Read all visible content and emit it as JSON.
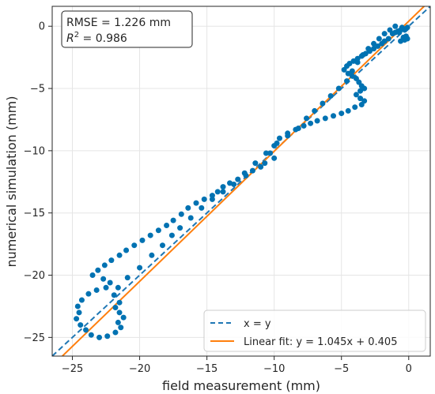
{
  "chart_data": {
    "type": "scatter",
    "xlabel": "field measurement (mm)",
    "ylabel": "numerical simulation (mm)",
    "xlim": [
      -26.5,
      1.6
    ],
    "ylim": [
      -26.5,
      1.6
    ],
    "xticks": [
      -25,
      -20,
      -15,
      -10,
      -5,
      0
    ],
    "yticks": [
      -25,
      -20,
      -15,
      -10,
      -5,
      0
    ],
    "grid": true,
    "annotation": {
      "line1": "RMSE = 1.226 mm",
      "line2_prefix": "R",
      "line2_sup": "2",
      "line2_suffix": " = 0.986"
    },
    "legend": {
      "placement": "lower-right",
      "entries": [
        {
          "label": "x = y",
          "style": "dashed",
          "color": "#1f77b4"
        },
        {
          "label": "Linear fit: y = 1.045x + 0.405",
          "style": "solid",
          "color": "#ff7f0e"
        }
      ]
    },
    "lines": [
      {
        "type": "identity",
        "color": "#1f77b4",
        "dashed": true
      },
      {
        "type": "linear",
        "slope": 1.045,
        "intercept": 0.405,
        "color": "#ff7f0e",
        "dashed": false
      }
    ],
    "points_color": "#0072b2",
    "points": [
      [
        -0.5,
        -0.1
      ],
      [
        -0.4,
        -0.2
      ],
      [
        -0.3,
        -0.3
      ],
      [
        -0.2,
        -0.2
      ],
      [
        -0.1,
        -0.1
      ],
      [
        -0.6,
        -0.3
      ],
      [
        -0.8,
        -0.4
      ],
      [
        -1.0,
        -0.5
      ],
      [
        -1.2,
        -0.6
      ],
      [
        -0.2,
        -0.8
      ],
      [
        -0.4,
        -0.9
      ],
      [
        -0.1,
        -1.0
      ],
      [
        -0.3,
        -1.1
      ],
      [
        -0.6,
        -1.2
      ],
      [
        -1.5,
        -1.0
      ],
      [
        -1.8,
        -1.2
      ],
      [
        -2.0,
        -1.4
      ],
      [
        -2.3,
        -1.6
      ],
      [
        -2.6,
        -1.8
      ],
      [
        -2.9,
        -2.0
      ],
      [
        -3.2,
        -2.2
      ],
      [
        -3.5,
        -2.4
      ],
      [
        -3.8,
        -2.6
      ],
      [
        -4.1,
        -2.8
      ],
      [
        -4.4,
        -3.0
      ],
      [
        -4.6,
        -3.2
      ],
      [
        -4.8,
        -3.5
      ],
      [
        -4.5,
        -3.8
      ],
      [
        -4.2,
        -4.0
      ],
      [
        -3.9,
        -4.2
      ],
      [
        -3.7,
        -4.5
      ],
      [
        -3.5,
        -4.8
      ],
      [
        -3.3,
        -5.0
      ],
      [
        -3.6,
        -5.2
      ],
      [
        -3.9,
        -5.5
      ],
      [
        -3.6,
        -5.8
      ],
      [
        -3.3,
        -6.0
      ],
      [
        -3.5,
        -6.3
      ],
      [
        -4.0,
        -6.5
      ],
      [
        -4.5,
        -6.8
      ],
      [
        -5.0,
        -7.0
      ],
      [
        -5.6,
        -7.2
      ],
      [
        -6.2,
        -7.4
      ],
      [
        -6.8,
        -7.6
      ],
      [
        -7.3,
        -7.8
      ],
      [
        -7.8,
        -8.0
      ],
      [
        -8.4,
        -8.3
      ],
      [
        -9.0,
        -8.6
      ],
      [
        -9.6,
        -9.0
      ],
      [
        -10.0,
        -9.6
      ],
      [
        -10.3,
        -10.2
      ],
      [
        -10.0,
        -10.6
      ],
      [
        -10.7,
        -11.0
      ],
      [
        -11.0,
        -11.3
      ],
      [
        -11.6,
        -11.6
      ],
      [
        -12.1,
        -12.0
      ],
      [
        -12.7,
        -12.3
      ],
      [
        -13.3,
        -12.6
      ],
      [
        -13.8,
        -12.9
      ],
      [
        -14.2,
        -13.3
      ],
      [
        -14.6,
        -13.6
      ],
      [
        -15.2,
        -13.9
      ],
      [
        -15.8,
        -14.2
      ],
      [
        -16.4,
        -14.6
      ],
      [
        -16.9,
        -15.1
      ],
      [
        -17.5,
        -15.6
      ],
      [
        -18.0,
        -16.0
      ],
      [
        -18.6,
        -16.4
      ],
      [
        -19.2,
        -16.8
      ],
      [
        -19.8,
        -17.2
      ],
      [
        -20.4,
        -17.6
      ],
      [
        -21.0,
        -18.0
      ],
      [
        -21.5,
        -18.4
      ],
      [
        -22.1,
        -18.8
      ],
      [
        -22.6,
        -19.2
      ],
      [
        -23.1,
        -19.6
      ],
      [
        -23.5,
        -20.0
      ],
      [
        -22.7,
        -20.3
      ],
      [
        -22.2,
        -20.6
      ],
      [
        -22.5,
        -21.0
      ],
      [
        -23.2,
        -21.2
      ],
      [
        -23.8,
        -21.5
      ],
      [
        -24.3,
        -22.0
      ],
      [
        -24.6,
        -22.5
      ],
      [
        -24.5,
        -23.0
      ],
      [
        -24.7,
        -23.5
      ],
      [
        -24.4,
        -24.0
      ],
      [
        -24.0,
        -24.4
      ],
      [
        -23.6,
        -24.8
      ],
      [
        -23.0,
        -25.0
      ],
      [
        -22.4,
        -24.9
      ],
      [
        -21.8,
        -24.6
      ],
      [
        -21.4,
        -24.2
      ],
      [
        -21.6,
        -23.8
      ],
      [
        -21.2,
        -23.4
      ],
      [
        -21.5,
        -23.0
      ],
      [
        -21.8,
        -22.6
      ],
      [
        -21.5,
        -22.2
      ],
      [
        -21.9,
        -21.6
      ],
      [
        -21.6,
        -21.0
      ],
      [
        -20.9,
        -20.2
      ],
      [
        -20.0,
        -19.4
      ],
      [
        -19.1,
        -18.4
      ],
      [
        -18.3,
        -17.6
      ],
      [
        -17.6,
        -16.8
      ],
      [
        -17.0,
        -16.2
      ],
      [
        -16.2,
        -15.4
      ],
      [
        -15.4,
        -14.6
      ],
      [
        -14.6,
        -13.9
      ],
      [
        -13.8,
        -13.3
      ],
      [
        -13.0,
        -12.7
      ],
      [
        -12.2,
        -11.8
      ],
      [
        -11.4,
        -11.0
      ],
      [
        -10.6,
        -10.2
      ],
      [
        -9.8,
        -9.4
      ],
      [
        -9.0,
        -8.8
      ],
      [
        -8.2,
        -8.2
      ],
      [
        -7.6,
        -7.4
      ],
      [
        -7.0,
        -6.8
      ],
      [
        -6.4,
        -6.2
      ],
      [
        -5.8,
        -5.6
      ],
      [
        -5.2,
        -5.0
      ],
      [
        -4.6,
        -4.4
      ],
      [
        -4.2,
        -3.6
      ],
      [
        -3.8,
        -2.9
      ],
      [
        -3.4,
        -2.3
      ],
      [
        -3.0,
        -1.8
      ],
      [
        -2.6,
        -1.4
      ],
      [
        -2.2,
        -1.0
      ],
      [
        -1.8,
        -0.6
      ],
      [
        -1.4,
        -0.3
      ],
      [
        -1.0,
        0.0
      ],
      [
        -0.7,
        -0.5
      ]
    ]
  }
}
